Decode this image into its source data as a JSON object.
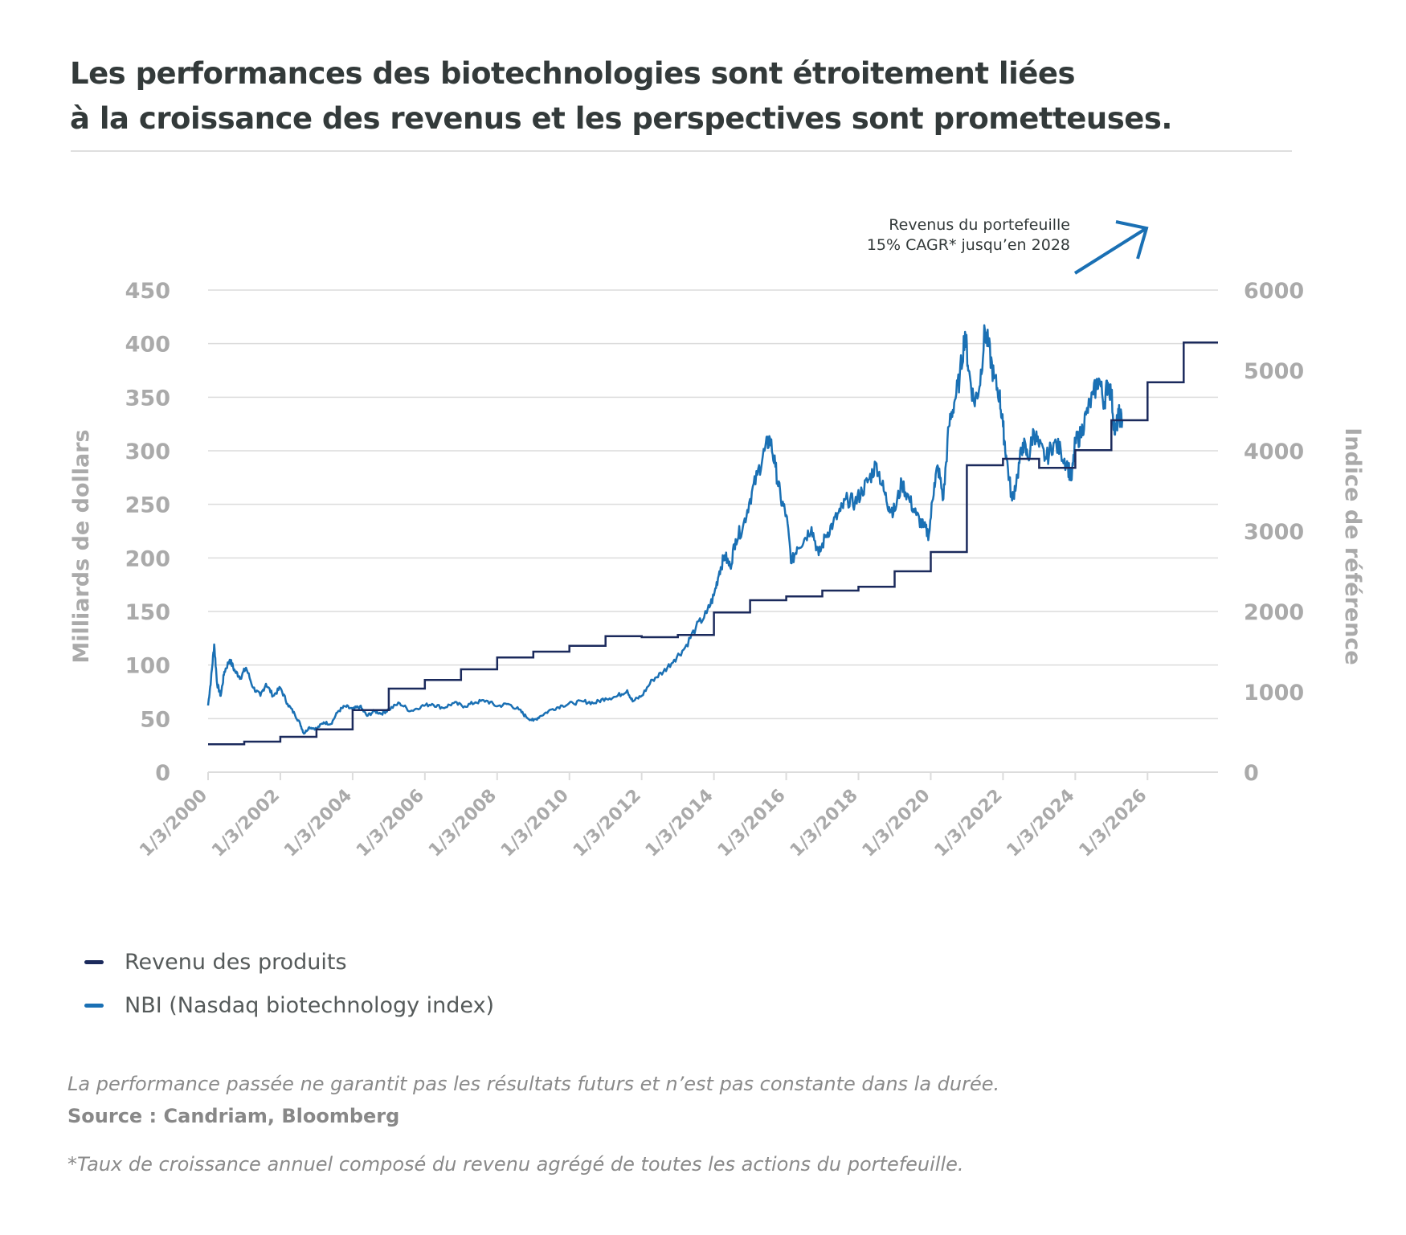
{
  "header": {
    "title_line1": "Les performances des biotechnologies sont étroitement liées",
    "title_line2": "à la croissance des revenus et les perspectives sont prometteuses."
  },
  "annotation": {
    "line1": "Revenus du portefeuille",
    "line2": "15% CAGR* jusqu’en 2028",
    "icon": "arrow-up-right-icon"
  },
  "legend": {
    "items": [
      {
        "label": "Revenu des produits",
        "color": "#1b2a5c"
      },
      {
        "label": "NBI (Nasdaq biotechnology index)",
        "color": "#1a70b4"
      }
    ]
  },
  "footer": {
    "disclaimer": "La performance passée ne garantit pas les résultats futurs et n’est pas constante dans la durée.",
    "source": "Source : Candriam, Bloomberg",
    "cagr_note": "*Taux de croissance annuel composé du revenu agrégé de toutes les actions du portefeuille."
  },
  "colors": {
    "revenue": "#1b2a5c",
    "nbi": "#1a70b4",
    "grid": "#dcdcdc",
    "axis_text": "#aaaaaa",
    "arrow": "#1a70b4"
  },
  "chart_data": {
    "type": "line",
    "title": "Les performances des biotechnologies sont étroitement liées à la croissance des revenus et les perspectives sont prometteuses.",
    "xlabel": "",
    "ylabel_left": "Milliards de dollars",
    "ylabel_right": "Indice de référence",
    "ylim_left": [
      0,
      450
    ],
    "ylim_right": [
      0,
      6000
    ],
    "yticks_left": [
      0,
      50,
      100,
      150,
      200,
      250,
      300,
      350,
      400,
      450
    ],
    "yticks_right": [
      0,
      1000,
      2000,
      3000,
      4000,
      5000,
      6000
    ],
    "xlim": [
      2000.0,
      2027.95
    ],
    "xtick_labels": [
      "1/3/2000",
      "1/3/2002",
      "1/3/2004",
      "1/3/2006",
      "1/3/2008",
      "1/3/2010",
      "1/3/2012",
      "1/3/2014",
      "1/3/2016",
      "1/3/2018",
      "1/3/2020",
      "1/3/2022",
      "1/3/2024",
      "1/3/2026"
    ],
    "xtick_values": [
      2000,
      2002,
      2004,
      2006,
      2008,
      2010,
      2012,
      2014,
      2016,
      2018,
      2020,
      2022,
      2024,
      2026
    ],
    "grid": true,
    "legend_position": "bottom-left",
    "series": [
      {
        "name": "Revenu des produits",
        "axis": "left",
        "style": "step",
        "x": [
          2000,
          2001,
          2002,
          2003,
          2004,
          2005,
          2006,
          2007,
          2008,
          2009,
          2010,
          2011,
          2012,
          2013,
          2014,
          2015,
          2016,
          2017,
          2018,
          2019,
          2020,
          2021,
          2022,
          2023,
          2024,
          2025,
          2026,
          2027
        ],
        "values": [
          26,
          28.5,
          33,
          40,
          58,
          78,
          86,
          96,
          107,
          112.5,
          118,
          127,
          126,
          128,
          149,
          160.5,
          164,
          169.5,
          173,
          187.5,
          205.5,
          286.5,
          292.5,
          284,
          300.5,
          328.5,
          364,
          401
        ],
        "x_end": 2027.95
      },
      {
        "name": "NBI (Nasdaq biotechnology index)",
        "axis": "right",
        "style": "line",
        "x": [
          2000.0,
          2000.08,
          2000.17,
          2000.25,
          2000.35,
          2000.45,
          2000.6,
          2000.75,
          2000.9,
          2001.05,
          2001.25,
          2001.45,
          2001.6,
          2001.8,
          2002.0,
          2002.2,
          2002.4,
          2002.55,
          2002.65,
          2002.8,
          2003.0,
          2003.2,
          2003.4,
          2003.6,
          2003.8,
          2004.0,
          2004.2,
          2004.4,
          2004.6,
          2004.8,
          2005.0,
          2005.3,
          2005.6,
          2005.9,
          2006.2,
          2006.5,
          2006.8,
          2007.1,
          2007.4,
          2007.7,
          2008.0,
          2008.3,
          2008.6,
          2008.8,
          2009.0,
          2009.2,
          2009.5,
          2009.8,
          2010.1,
          2010.4,
          2010.7,
          2011.0,
          2011.3,
          2011.6,
          2011.75,
          2012.0,
          2012.3,
          2012.6,
          2012.9,
          2013.2,
          2013.5,
          2013.8,
          2014.0,
          2014.15,
          2014.3,
          2014.45,
          2014.6,
          2014.8,
          2015.0,
          2015.2,
          2015.4,
          2015.55,
          2015.7,
          2015.85,
          2016.0,
          2016.15,
          2016.3,
          2016.5,
          2016.7,
          2016.9,
          2017.1,
          2017.3,
          2017.5,
          2017.7,
          2017.9,
          2018.1,
          2018.3,
          2018.5,
          2018.7,
          2018.85,
          2019.0,
          2019.2,
          2019.4,
          2019.6,
          2019.8,
          2019.95,
          2020.1,
          2020.2,
          2020.35,
          2020.5,
          2020.65,
          2020.8,
          2020.95,
          2021.05,
          2021.2,
          2021.35,
          2021.5,
          2021.6,
          2021.75,
          2021.9,
          2022.0,
          2022.1,
          2022.25,
          2022.4,
          2022.55,
          2022.7,
          2022.85,
          2023.0,
          2023.2,
          2023.4,
          2023.6,
          2023.8,
          2023.9,
          2024.0,
          2024.15,
          2024.3,
          2024.5,
          2024.65,
          2024.8,
          2024.9,
          2025.0,
          2025.1,
          2025.2,
          2025.3
        ],
        "values": [
          830,
          1150,
          1590,
          1100,
          950,
          1250,
          1400,
          1250,
          1180,
          1300,
          1050,
          950,
          1100,
          950,
          1050,
          850,
          720,
          600,
          480,
          560,
          540,
          620,
          600,
          760,
          820,
          780,
          820,
          700,
          760,
          730,
          780,
          860,
          760,
          820,
          850,
          800,
          860,
          820,
          870,
          890,
          820,
          850,
          780,
          690,
          640,
          700,
          780,
          830,
          860,
          880,
          860,
          920,
          940,
          1020,
          880,
          950,
          1150,
          1250,
          1400,
          1550,
          1800,
          1980,
          2200,
          2500,
          2700,
          2550,
          2900,
          3050,
          3400,
          3700,
          4000,
          4160,
          3800,
          3400,
          3200,
          2600,
          2800,
          2900,
          3050,
          2700,
          2950,
          3100,
          3250,
          3400,
          3350,
          3500,
          3650,
          3840,
          3500,
          3300,
          3250,
          3600,
          3400,
          3200,
          3050,
          2960,
          3600,
          3800,
          3400,
          4300,
          4600,
          4900,
          5480,
          5000,
          4600,
          4800,
          5500,
          5300,
          4900,
          4700,
          4300,
          3900,
          3380,
          3700,
          4100,
          3900,
          4250,
          4050,
          3900,
          4100,
          4000,
          3800,
          3640,
          4100,
          4200,
          4450,
          4700,
          4900,
          4600,
          4850,
          4700,
          4200,
          4450,
          4380
        ]
      }
    ]
  }
}
